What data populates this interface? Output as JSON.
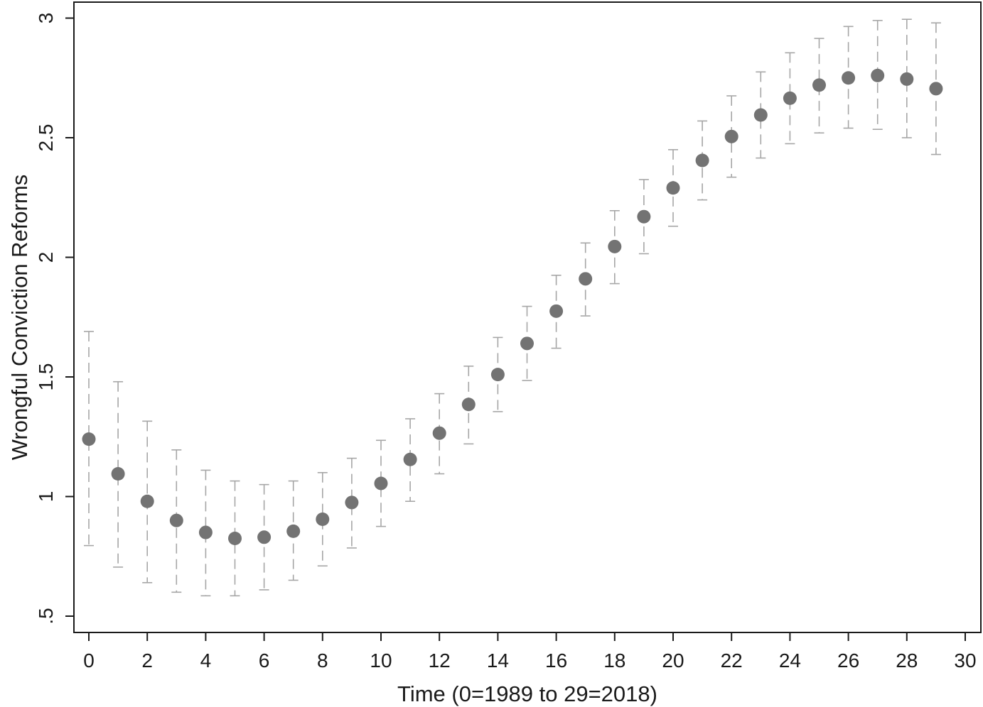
{
  "chart_data": {
    "type": "scatter",
    "title": "",
    "xlabel": "Time (0=1989 to 29=2018)",
    "ylabel": "Wrongful Conviction Reforms",
    "xlim": [
      0,
      30
    ],
    "ylim": [
      0.5,
      3
    ],
    "xticks": [
      "0",
      "2",
      "4",
      "6",
      "8",
      "10",
      "12",
      "14",
      "16",
      "18",
      "20",
      "22",
      "24",
      "26",
      "28",
      "30"
    ],
    "yticks": [
      {
        "value": 0.5,
        "label": ".5"
      },
      {
        "value": 1,
        "label": "1"
      },
      {
        "value": 1.5,
        "label": "1.5"
      },
      {
        "value": 2,
        "label": "2"
      },
      {
        "value": 2.5,
        "label": "2.5"
      },
      {
        "value": 3,
        "label": "3"
      }
    ],
    "grid": false,
    "legend": "none",
    "marker_color": "#737373",
    "errorbar_color": "#a6a6a6",
    "points": [
      {
        "x": 0,
        "y": 1.24,
        "lo": 0.795,
        "hi": 1.69
      },
      {
        "x": 1,
        "y": 1.095,
        "lo": 0.705,
        "hi": 1.48
      },
      {
        "x": 2,
        "y": 0.98,
        "lo": 0.64,
        "hi": 1.315
      },
      {
        "x": 3,
        "y": 0.9,
        "lo": 0.6,
        "hi": 1.195
      },
      {
        "x": 4,
        "y": 0.85,
        "lo": 0.585,
        "hi": 1.11
      },
      {
        "x": 5,
        "y": 0.825,
        "lo": 0.585,
        "hi": 1.065
      },
      {
        "x": 6,
        "y": 0.83,
        "lo": 0.61,
        "hi": 1.05
      },
      {
        "x": 7,
        "y": 0.855,
        "lo": 0.65,
        "hi": 1.065
      },
      {
        "x": 8,
        "y": 0.905,
        "lo": 0.71,
        "hi": 1.1
      },
      {
        "x": 9,
        "y": 0.975,
        "lo": 0.785,
        "hi": 1.16
      },
      {
        "x": 10,
        "y": 1.055,
        "lo": 0.875,
        "hi": 1.235
      },
      {
        "x": 11,
        "y": 1.155,
        "lo": 0.98,
        "hi": 1.325
      },
      {
        "x": 12,
        "y": 1.265,
        "lo": 1.095,
        "hi": 1.43
      },
      {
        "x": 13,
        "y": 1.385,
        "lo": 1.22,
        "hi": 1.545
      },
      {
        "x": 14,
        "y": 1.51,
        "lo": 1.355,
        "hi": 1.665
      },
      {
        "x": 15,
        "y": 1.64,
        "lo": 1.485,
        "hi": 1.795
      },
      {
        "x": 16,
        "y": 1.775,
        "lo": 1.62,
        "hi": 1.925
      },
      {
        "x": 17,
        "y": 1.91,
        "lo": 1.755,
        "hi": 2.06
      },
      {
        "x": 18,
        "y": 2.045,
        "lo": 1.89,
        "hi": 2.195
      },
      {
        "x": 19,
        "y": 2.17,
        "lo": 2.015,
        "hi": 2.325
      },
      {
        "x": 20,
        "y": 2.29,
        "lo": 2.13,
        "hi": 2.45
      },
      {
        "x": 21,
        "y": 2.405,
        "lo": 2.24,
        "hi": 2.57
      },
      {
        "x": 22,
        "y": 2.505,
        "lo": 2.335,
        "hi": 2.675
      },
      {
        "x": 23,
        "y": 2.595,
        "lo": 2.415,
        "hi": 2.775
      },
      {
        "x": 24,
        "y": 2.665,
        "lo": 2.475,
        "hi": 2.855
      },
      {
        "x": 25,
        "y": 2.72,
        "lo": 2.52,
        "hi": 2.915
      },
      {
        "x": 26,
        "y": 2.75,
        "lo": 2.54,
        "hi": 2.965
      },
      {
        "x": 27,
        "y": 2.76,
        "lo": 2.535,
        "hi": 2.99
      },
      {
        "x": 28,
        "y": 2.745,
        "lo": 2.5,
        "hi": 2.995
      },
      {
        "x": 29,
        "y": 2.705,
        "lo": 2.43,
        "hi": 2.98
      }
    ]
  }
}
